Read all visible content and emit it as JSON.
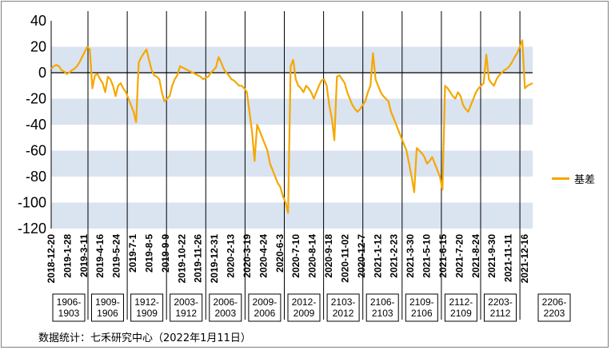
{
  "chart_data": {
    "type": "line",
    "title": "",
    "xlabel": "",
    "ylabel": "",
    "ylim": [
      -120,
      40
    ],
    "yticks": [
      40,
      20,
      0,
      -20,
      -40,
      -60,
      -80,
      -100,
      -120
    ],
    "x_tick_labels": [
      "2018-12-20",
      "2019-1-28",
      "2019-3-11",
      "2019-4-16",
      "2019-5-24",
      "2019-7-1",
      "2019-8-5",
      "2019-9-9",
      "2019-10-22",
      "2019-11-26",
      "2019-12-31",
      "2020-2-13",
      "2020-3-19",
      "2020-4-24",
      "2020-6-3",
      "2020-7-10",
      "2020-8-14",
      "2020-9-18",
      "2020-11-02",
      "2020-12-7",
      "2021-1-12",
      "2021-2-23",
      "2021-3-30",
      "2021-5-10",
      "2021-6-15",
      "2021-7-20",
      "2021-8-24",
      "2021-9-30",
      "2021-11-11",
      "2021-12-16"
    ],
    "contract_labels": [
      [
        "1906-",
        "1903"
      ],
      [
        "1909-",
        "1906"
      ],
      [
        "1912-",
        "1909"
      ],
      [
        "2003-",
        "1912"
      ],
      [
        "2006-",
        "2003"
      ],
      [
        "2009-",
        "2006"
      ],
      [
        "2012-",
        "2009"
      ],
      [
        "2103-",
        "2012"
      ],
      [
        "2106-",
        "2103"
      ],
      [
        "2109-",
        "2106"
      ],
      [
        "2112-",
        "2109"
      ],
      [
        "2203-",
        "2112"
      ],
      [
        "2206-",
        "2203"
      ]
    ],
    "grid_bands": true,
    "legend_position": "right",
    "series": [
      {
        "name": "基差",
        "color": "#f5a800",
        "values": [
          3,
          5,
          6,
          5,
          2,
          1,
          -1,
          0,
          2,
          3,
          5,
          8,
          12,
          16,
          20,
          18,
          -12,
          -2,
          -1,
          -5,
          -8,
          -15,
          -3,
          -5,
          -10,
          -18,
          -10,
          -8,
          -12,
          -15,
          -20,
          -25,
          -30,
          -38,
          8,
          12,
          15,
          18,
          10,
          2,
          -2,
          -3,
          -5,
          -15,
          -22,
          -20,
          -18,
          -10,
          -5,
          -2,
          5,
          4,
          3,
          2,
          1,
          0,
          -1,
          -2,
          -3,
          -5,
          -4,
          -3,
          0,
          2,
          4,
          12,
          8,
          3,
          0,
          -2,
          -5,
          -6,
          -8,
          -10,
          -10,
          -12,
          -15,
          -30,
          -45,
          -68,
          -40,
          -45,
          -50,
          -55,
          -60,
          -70,
          -75,
          -80,
          -85,
          -88,
          -95,
          -100,
          -108,
          5,
          10,
          -5,
          -10,
          -12,
          -15,
          -10,
          -12,
          -15,
          -20,
          -15,
          -10,
          -6,
          -5,
          -10,
          -25,
          -35,
          -52,
          -3,
          -2,
          -5,
          -8,
          -15,
          -20,
          -25,
          -28,
          -30,
          -28,
          -25,
          -22,
          -15,
          -10,
          15,
          -5,
          -10,
          -15,
          -18,
          -20,
          -22,
          -30,
          -35,
          -40,
          -45,
          -50,
          -55,
          -60,
          -70,
          -80,
          -92,
          -58,
          -60,
          -62,
          -65,
          -70,
          -68,
          -65,
          -70,
          -75,
          -80,
          -90,
          -10,
          -12,
          -15,
          -18,
          -20,
          -15,
          -18,
          -25,
          -28,
          -30,
          -25,
          -20,
          -15,
          -12,
          -10,
          -8,
          14,
          -5,
          -8,
          -10,
          -5,
          -2,
          0,
          2,
          3,
          5,
          8,
          12,
          15,
          20,
          25,
          -12,
          -10,
          -9,
          -8
        ]
      }
    ],
    "source_note": "数据统计：七禾研究中心（2022年1月11日）"
  }
}
